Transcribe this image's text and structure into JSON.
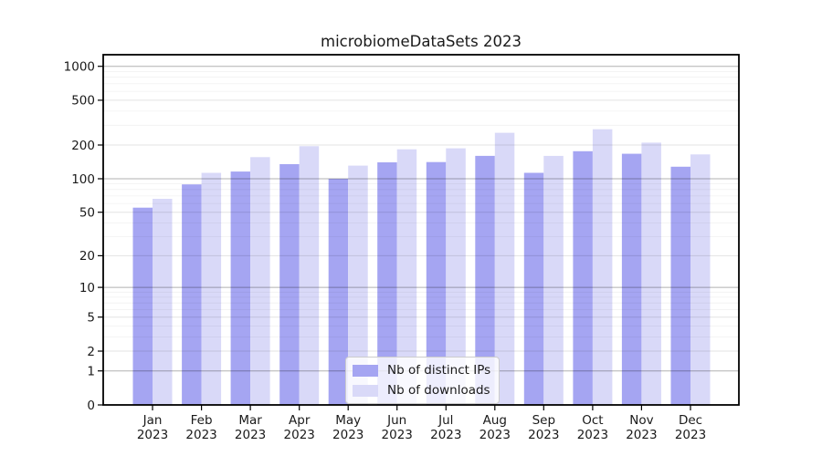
{
  "chart_data": {
    "type": "bar",
    "title": "microbiomeDataSets 2023",
    "categories": [
      "Jan 2023",
      "Feb 2023",
      "Mar 2023",
      "Apr 2023",
      "May 2023",
      "Jun 2023",
      "Jul 2023",
      "Aug 2023",
      "Sep 2023",
      "Oct 2023",
      "Nov 2023",
      "Dec 2023"
    ],
    "series": [
      {
        "name": "Nb of distinct IPs",
        "color": "#a5a5f2",
        "values": [
          55,
          89,
          116,
          135,
          100,
          140,
          141,
          160,
          113,
          176,
          167,
          128
        ]
      },
      {
        "name": "Nb of downloads",
        "color": "#d9d9f8",
        "values": [
          66,
          113,
          156,
          195,
          131,
          183,
          187,
          257,
          160,
          276,
          210,
          165
        ]
      }
    ],
    "xlabel": "",
    "ylabel": "",
    "yscale": "log1p",
    "yticks": [
      0,
      1,
      2,
      5,
      10,
      20,
      50,
      100,
      200,
      500,
      1000
    ],
    "minor_yticks": [
      3,
      4,
      6,
      7,
      8,
      9,
      30,
      40,
      60,
      70,
      80,
      90,
      300,
      400,
      600,
      700,
      800,
      900
    ],
    "ylim": [
      0,
      1268
    ],
    "grid": true,
    "legend_position": "lower center"
  },
  "colors": {
    "grid_major_pow10": "rgba(0,0,0,0.31)",
    "grid_major_other": "rgba(0,0,0,0.11)",
    "grid_minor": "rgba(0,0,0,0.06)",
    "spine": "#000000",
    "tick_text": "#1a1a1a"
  }
}
